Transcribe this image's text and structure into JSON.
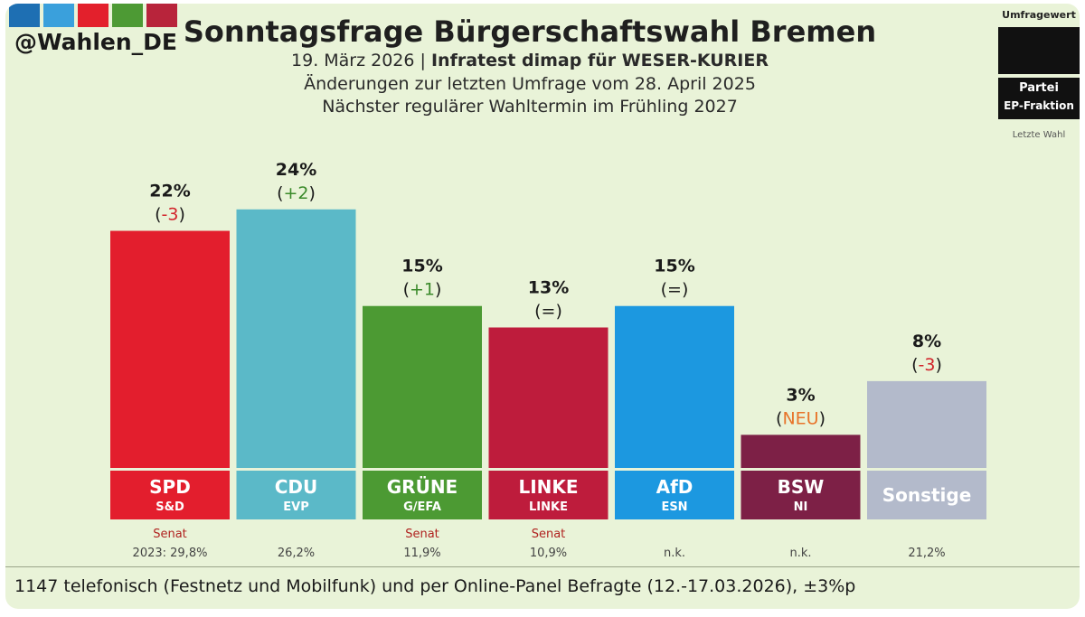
{
  "header": {
    "handle": "@Wahlen_DE",
    "title": "Sonntagsfrage Bürgerschaftswahl Bremen",
    "sub1_plain": "19. März 2026 | ",
    "sub1_bold": "Infratest dimap für WESER-KURIER",
    "sub2": "Änderungen zur letzten Umfrage vom 28. April 2025",
    "sub3": "Nächster regulärer Wahltermin im Frühling 2027"
  },
  "legend": {
    "umfragewert": "Umfragewert",
    "partei": "Partei",
    "fraktion": "EP-Fraktion",
    "letzte_wahl": "Letzte Wahl"
  },
  "logo_colors": [
    "#1e6fb3",
    "#3aa0dc",
    "#e3202c",
    "#4d9a34",
    "#b8243b"
  ],
  "chart_data": {
    "type": "bar",
    "title": "Sonntagsfrage Bürgerschaftswahl Bremen",
    "unit": "%",
    "ylim": [
      0,
      26
    ],
    "bars": [
      {
        "party": "SPD",
        "faction": "S&D",
        "value": 22,
        "value_label": "22%",
        "change": "-3",
        "change_color": "#d2232a",
        "color": "#e31e2d",
        "senat": "Senat",
        "last_election": "2023: 29,8%"
      },
      {
        "party": "CDU",
        "faction": "EVP",
        "value": 24,
        "value_label": "24%",
        "change": "+2",
        "change_color": "#3a8a2a",
        "color": "#5bb9c8",
        "senat": "",
        "last_election": "26,2%"
      },
      {
        "party": "GRÜNE",
        "faction": "G/EFA",
        "value": 15,
        "value_label": "15%",
        "change": "+1",
        "change_color": "#3a8a2a",
        "color": "#4c9a33",
        "senat": "Senat",
        "last_election": "11,9%"
      },
      {
        "party": "LINKE",
        "faction": "LINKE",
        "value": 13,
        "value_label": "13%",
        "change": "=",
        "change_color": "#1a1a1a",
        "color": "#be1c3c",
        "senat": "Senat",
        "last_election": "10,9%"
      },
      {
        "party": "AfD",
        "faction": "ESN",
        "value": 15,
        "value_label": "15%",
        "change": "=",
        "change_color": "#1a1a1a",
        "color": "#1c98e0",
        "senat": "",
        "last_election": "n.k."
      },
      {
        "party": "BSW",
        "faction": "NI",
        "value": 3,
        "value_label": "3%",
        "change": "NEU",
        "change_color": "#e8742a",
        "color": "#7d2046",
        "senat": "",
        "last_election": "n.k."
      },
      {
        "party": "Sonstige",
        "faction": "",
        "value": 8,
        "value_label": "8%",
        "change": "-3",
        "change_color": "#d2232a",
        "color": "#b3bacb",
        "senat": "",
        "last_election": "21,2%"
      }
    ]
  },
  "footer": "1147 telefonisch (Festnetz und Mobilfunk) und per Online-Panel Befragte (12.-17.03.2026), ±3%p"
}
